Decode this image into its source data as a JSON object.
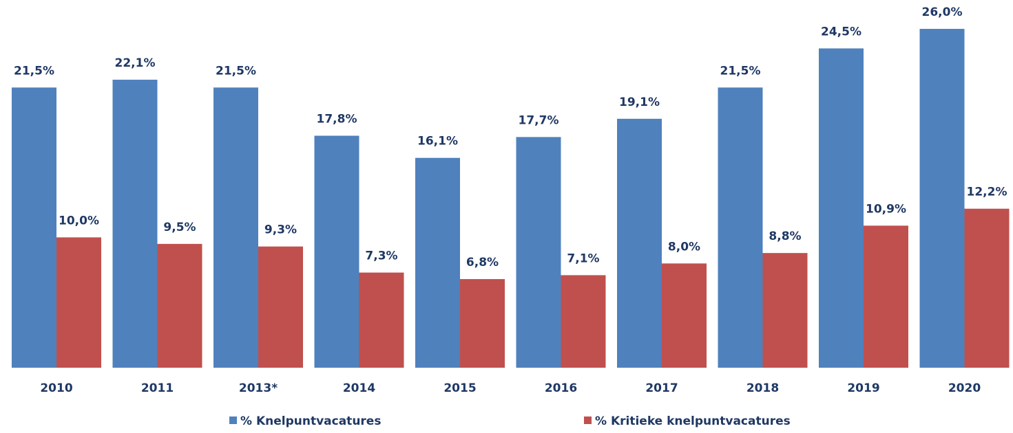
{
  "chart_data": {
    "type": "bar",
    "categories": [
      "2010",
      "2011",
      "2013*",
      "2014",
      "2015",
      "2016",
      "2017",
      "2018",
      "2019",
      "2020"
    ],
    "series": [
      {
        "name": "% Knelpuntvacatures",
        "color": "#4f81bd",
        "values": [
          21.5,
          22.1,
          21.5,
          17.8,
          16.1,
          17.7,
          19.1,
          21.5,
          24.5,
          26.0
        ],
        "value_labels": [
          "21,5%",
          "22,1%",
          "21,5%",
          "17,8%",
          "16,1%",
          "17,7%",
          "19,1%",
          "21,5%",
          "24,5%",
          "26,0%"
        ]
      },
      {
        "name": "% Kritieke knelpuntvacatures",
        "color": "#c0504d",
        "values": [
          10.0,
          9.5,
          9.3,
          7.3,
          6.8,
          7.1,
          8.0,
          8.8,
          10.9,
          12.2
        ],
        "value_labels": [
          "10,0%",
          "9,5%",
          "9,3%",
          "7,3%",
          "6,8%",
          "7,1%",
          "8,0%",
          "8,8%",
          "10,9%",
          "12,2%"
        ]
      }
    ]
  }
}
